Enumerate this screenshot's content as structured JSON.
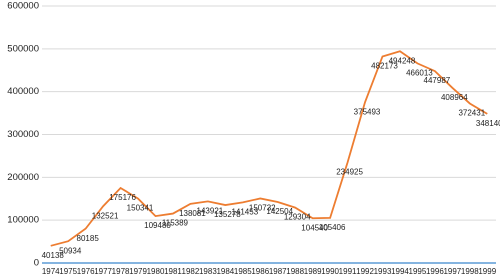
{
  "chart_data": {
    "type": "line",
    "categories": [
      "1974",
      "1975",
      "1976",
      "1977",
      "1978",
      "1979",
      "1980",
      "1981",
      "1982",
      "1983",
      "1984",
      "1985",
      "1986",
      "1987",
      "1988",
      "1989",
      "1990",
      "1991",
      "1992",
      "1993",
      "1994",
      "1995",
      "1996",
      "1997",
      "1998",
      "1999"
    ],
    "series": [
      {
        "color": "#ed7d31",
        "values": [
          40138,
          50934,
          80185,
          132521,
          175176,
          150341,
          109480,
          115389,
          138081,
          143921,
          135278,
          141453,
          150732,
          142504,
          129304,
          104540,
          105406,
          234925,
          375493,
          482173,
          494248,
          466013,
          447987,
          408964,
          372431,
          348140
        ]
      }
    ],
    "ylim": [
      0,
      600000
    ],
    "yticks": [
      0,
      100000,
      200000,
      300000,
      400000,
      500000,
      600000
    ],
    "grid": true
  }
}
